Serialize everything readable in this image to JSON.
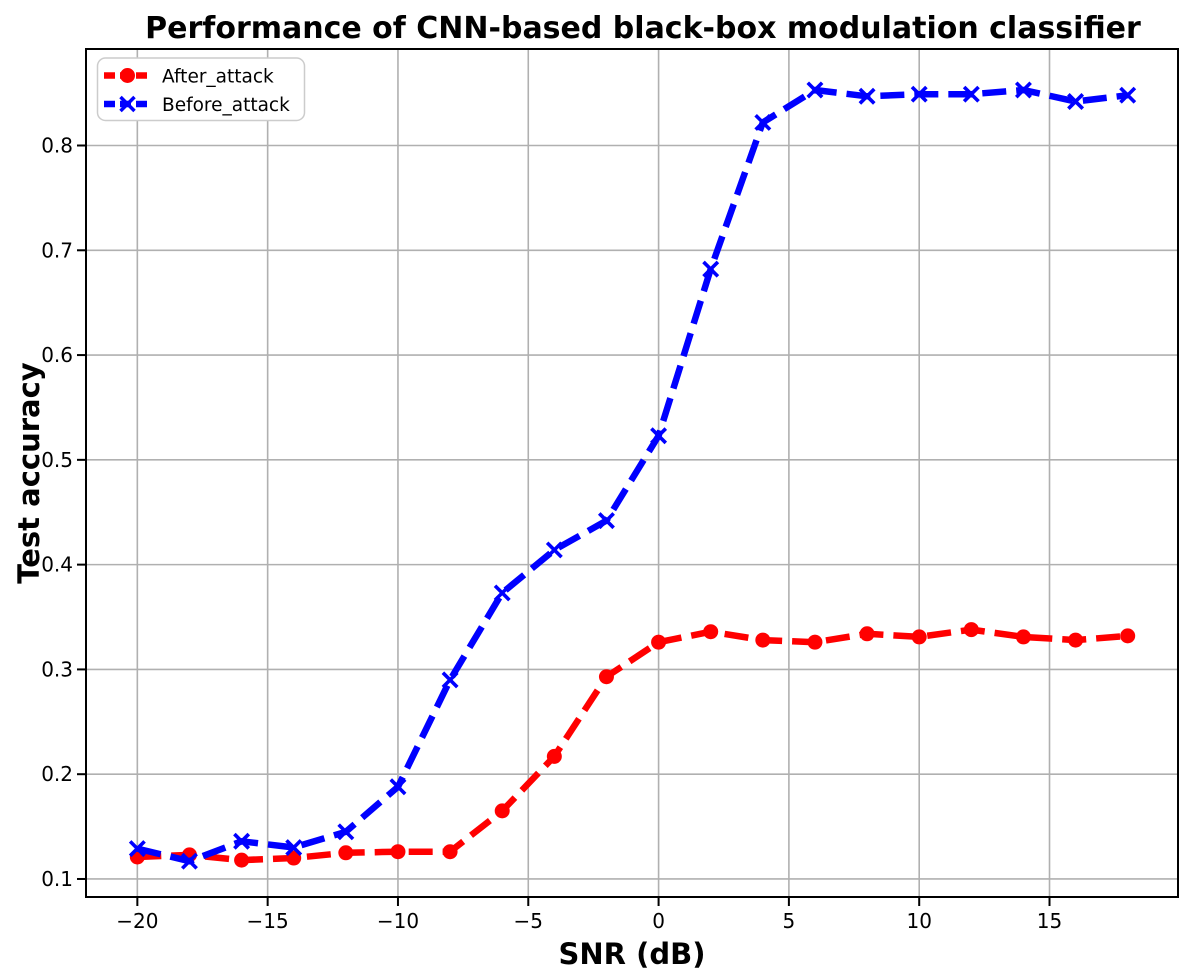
{
  "chart_data": {
    "type": "line",
    "title": "Performance of CNN-based black-box modulation classifier",
    "xlabel": "SNR (dB)",
    "ylabel": "Test accuracy",
    "x": [
      -20,
      -18,
      -16,
      -14,
      -12,
      -10,
      -8,
      -6,
      -4,
      -2,
      0,
      2,
      4,
      6,
      8,
      10,
      12,
      14,
      16,
      18
    ],
    "series": [
      {
        "name": "After_attack",
        "color": "#ff0000",
        "marker": "circle",
        "linestyle": "dashed",
        "values": [
          0.121,
          0.123,
          0.118,
          0.12,
          0.125,
          0.126,
          0.126,
          0.165,
          0.217,
          0.293,
          0.326,
          0.336,
          0.328,
          0.326,
          0.334,
          0.331,
          0.338,
          0.331,
          0.328,
          0.332
        ]
      },
      {
        "name": "Before_attack",
        "color": "#0000ff",
        "marker": "x",
        "linestyle": "dashed",
        "values": [
          0.129,
          0.117,
          0.136,
          0.13,
          0.145,
          0.188,
          0.29,
          0.373,
          0.414,
          0.442,
          0.523,
          0.682,
          0.822,
          0.853,
          0.847,
          0.849,
          0.849,
          0.853,
          0.842,
          0.848
        ]
      }
    ],
    "xlim": [
      -21.97,
      19.93
    ],
    "ylim": [
      0.0828,
      0.8921
    ],
    "xticks": [
      -20,
      -15,
      -10,
      -5,
      0,
      5,
      10,
      15
    ],
    "xtick_labels": [
      "−20",
      "−15",
      "−10",
      "−5",
      "0",
      "5",
      "10",
      "15"
    ],
    "yticks": [
      0.1,
      0.2,
      0.3,
      0.4,
      0.5,
      0.6,
      0.7,
      0.8
    ],
    "ytick_labels": [
      "0.1",
      "0.2",
      "0.3",
      "0.4",
      "0.5",
      "0.6",
      "0.7",
      "0.8"
    ],
    "grid": true,
    "grid_color": "#b0b0b0",
    "spine_color": "#000000",
    "background": "#ffffff",
    "legend_position": "upper left"
  }
}
